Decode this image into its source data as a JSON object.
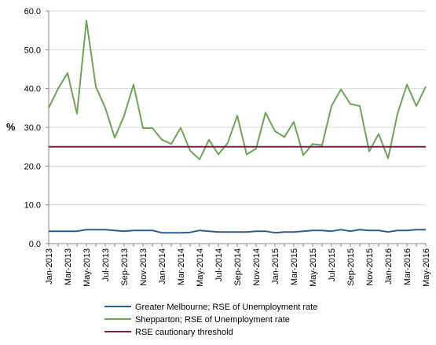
{
  "chart_data": {
    "type": "line",
    "title": "",
    "xlabel": "",
    "ylabel": "%",
    "ylim": [
      0,
      60
    ],
    "yticks": [
      "0.0",
      "10.0",
      "20.0",
      "30.0",
      "40.0",
      "50.0",
      "60.0"
    ],
    "categories": [
      "Jan-2013",
      "Feb-2013",
      "Mar-2013",
      "Apr-2013",
      "May-2013",
      "Jun-2013",
      "Jul-2013",
      "Aug-2013",
      "Sep-2013",
      "Oct-2013",
      "Nov-2013",
      "Dec-2013",
      "Jan-2014",
      "Feb-2014",
      "Mar-2014",
      "Apr-2014",
      "May-2014",
      "Jun-2014",
      "Jul-2014",
      "Aug-2014",
      "Sep-2014",
      "Oct-2014",
      "Nov-2014",
      "Dec-2014",
      "Jan-2015",
      "Feb-2015",
      "Mar-2015",
      "Apr-2015",
      "May-2015",
      "Jun-2015",
      "Jul-2015",
      "Aug-2015",
      "Sep-2015",
      "Oct-2015",
      "Nov-2015",
      "Dec-2015",
      "Jan-2016",
      "Feb-2016",
      "Mar-2016",
      "Apr-2016",
      "May-2016"
    ],
    "tick_labels": [
      "Jan-2013",
      "Mar-2013",
      "May-2013",
      "Jul-2013",
      "Sep-2013",
      "Nov-2013",
      "Jan-2014",
      "Mar-2014",
      "May-2014",
      "Jul-2014",
      "Sep-2014",
      "Nov-2014",
      "Jan-2015",
      "Mar-2015",
      "May-2015",
      "Jul-2015",
      "Sep-2015",
      "Nov-2015",
      "Jan-2016",
      "Mar-2016",
      "May-2016"
    ],
    "series": [
      {
        "name": "Greater Melbourne;  RSE of Unemployment rate",
        "color": "#2e5c8a",
        "values": [
          3.2,
          3.2,
          3.2,
          3.2,
          3.6,
          3.6,
          3.6,
          3.4,
          3.2,
          3.4,
          3.4,
          3.4,
          2.8,
          2.8,
          2.8,
          2.9,
          3.4,
          3.2,
          3.0,
          3.0,
          3.0,
          3.0,
          3.2,
          3.2,
          2.8,
          3.0,
          3.0,
          3.2,
          3.4,
          3.4,
          3.2,
          3.6,
          3.2,
          3.6,
          3.4,
          3.4,
          3.0,
          3.4,
          3.4,
          3.6,
          3.6
        ]
      },
      {
        "name": "Shepparton;  RSE of Unemployment rate",
        "color": "#70a35a",
        "values": [
          35.0,
          40.0,
          44.0,
          33.5,
          57.5,
          40.5,
          35.0,
          27.3,
          33.0,
          41.0,
          29.8,
          29.8,
          26.8,
          25.7,
          29.9,
          24.0,
          21.7,
          26.8,
          23.0,
          26.0,
          33.0,
          23.0,
          24.5,
          33.8,
          29.0,
          27.5,
          31.4,
          22.8,
          25.7,
          25.4,
          35.5,
          39.8,
          36.0,
          35.5,
          23.8,
          28.3,
          22.0,
          33.5,
          41.0,
          35.5,
          40.5
        ]
      },
      {
        "name": "RSE cautionary threshold",
        "color": "#7a2246",
        "values": [
          25,
          25,
          25,
          25,
          25,
          25,
          25,
          25,
          25,
          25,
          25,
          25,
          25,
          25,
          25,
          25,
          25,
          25,
          25,
          25,
          25,
          25,
          25,
          25,
          25,
          25,
          25,
          25,
          25,
          25,
          25,
          25,
          25,
          25,
          25,
          25,
          25,
          25,
          25,
          25,
          25
        ]
      }
    ],
    "grid": true,
    "legend": "bottom"
  }
}
